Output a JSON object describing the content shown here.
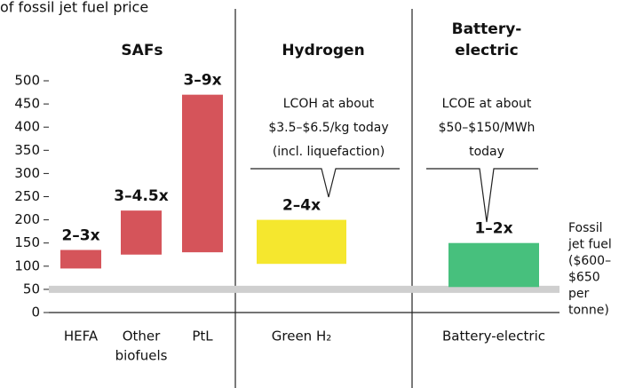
{
  "chart_data": {
    "type": "floating_bar",
    "title": "of fossil jet fuel price",
    "groups": [
      {
        "lines": [
          "SAFs"
        ]
      },
      {
        "lines": [
          "Hydrogen"
        ]
      },
      {
        "lines": [
          "Battery-",
          "electric"
        ]
      }
    ],
    "categories": [
      [
        "HEFA"
      ],
      [
        "Other",
        "biofuels"
      ],
      [
        "PtL"
      ],
      [
        "Green H₂"
      ],
      [
        "Battery-electric"
      ]
    ],
    "low": [
      95,
      125,
      130,
      105,
      55
    ],
    "high": [
      135,
      220,
      470,
      200,
      150
    ],
    "value_labels": [
      "2–3x",
      "3–4.5x",
      "3–9x",
      "2–4x",
      "1–2x"
    ],
    "colors": [
      "#d5545a",
      "#d5545a",
      "#d5545a",
      "#f5e72e",
      "#47c07d"
    ],
    "annotations": [
      {
        "lines": [
          "LCOH at about",
          "$3.5–$6.5/kg today",
          "(incl. liquefaction)"
        ]
      },
      {
        "lines": [
          "LCOE at about",
          "$50–$150/MWh",
          "today"
        ]
      }
    ],
    "reference": {
      "value": 50,
      "color": "#cfcfcf",
      "lines": [
        "Fossil",
        "jet fuel",
        "($600–",
        "$650",
        "per",
        "tonne)"
      ]
    },
    "ylim": [
      0,
      500
    ],
    "yticks": [
      0,
      50,
      100,
      150,
      200,
      250,
      300,
      350,
      400,
      450,
      500
    ]
  }
}
